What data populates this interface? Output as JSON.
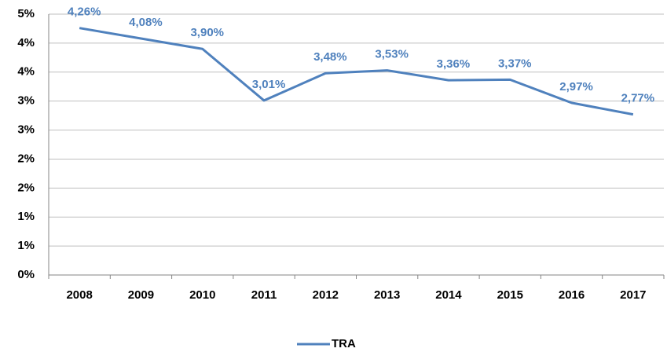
{
  "chart_data": {
    "type": "line",
    "categories": [
      "2008",
      "2009",
      "2010",
      "2011",
      "2012",
      "2013",
      "2014",
      "2015",
      "2016",
      "2017"
    ],
    "series": [
      {
        "name": "TRA",
        "color": "#4f81bd",
        "values": [
          4.26,
          4.08,
          3.9,
          3.01,
          3.48,
          3.53,
          3.36,
          3.37,
          2.97,
          2.77
        ],
        "value_labels": [
          "4,26%",
          "4,08%",
          "3,90%",
          "3,01%",
          "3,48%",
          "3,53%",
          "3,36%",
          "3,37%",
          "2,97%",
          "2,77%"
        ]
      }
    ],
    "ylim": [
      0,
      4.5
    ],
    "yticks": [
      {
        "value": 0,
        "label": "0%"
      },
      {
        "value": 0.5,
        "label": "1%"
      },
      {
        "value": 1,
        "label": "1%"
      },
      {
        "value": 1.5,
        "label": "2%"
      },
      {
        "value": 2,
        "label": "2%"
      },
      {
        "value": 2.5,
        "label": "3%"
      },
      {
        "value": 3,
        "label": "3%"
      },
      {
        "value": 3.5,
        "label": "4%"
      },
      {
        "value": 4,
        "label": "4%"
      },
      {
        "value": 4.5,
        "label": "5%"
      }
    ],
    "grid": true,
    "legend": "bottom"
  }
}
